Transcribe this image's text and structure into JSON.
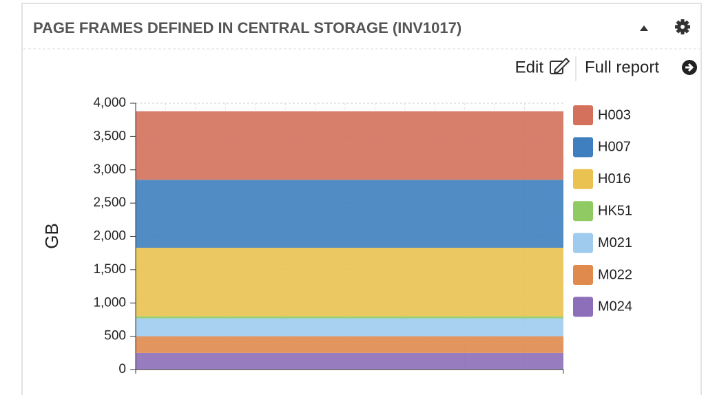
{
  "chart_data": {
    "type": "stacked_area",
    "title": "PAGE FRAMES DEFINED IN CENTRAL STORAGE (INV1017)",
    "links": [
      "Edit",
      "Full report"
    ],
    "ylabel": "GB",
    "categories": [
      null,
      null
    ],
    "series": [
      {
        "name": "H003",
        "color": "#d4715c",
        "values": [
          1030,
          1030
        ]
      },
      {
        "name": "H007",
        "color": "#3f7fbf",
        "values": [
          1020,
          1020
        ]
      },
      {
        "name": "H016",
        "color": "#e9c251",
        "values": [
          1030,
          1030
        ]
      },
      {
        "name": "HK51",
        "color": "#8fcb62",
        "values": [
          30,
          30
        ]
      },
      {
        "name": "M021",
        "color": "#9ecbee",
        "values": [
          270,
          270
        ]
      },
      {
        "name": "M022",
        "color": "#e08a4e",
        "values": [
          250,
          250
        ]
      },
      {
        "name": "M024",
        "color": "#8c6fb8",
        "values": [
          250,
          250
        ]
      }
    ],
    "ylim": [
      0,
      4000
    ],
    "yticks": [
      0,
      500,
      {
        "value": 1000,
        "label": "1,000"
      },
      {
        "value": 1500,
        "label": "1,500"
      },
      {
        "value": 2000,
        "label": "2,000"
      },
      {
        "value": 2500,
        "label": "2,500"
      },
      {
        "value": 3000,
        "label": "3,000"
      },
      {
        "value": 3500,
        "label": "3,500"
      },
      {
        "value": 4000,
        "label": "4,000"
      }
    ],
    "grid": true,
    "legend": "right"
  }
}
